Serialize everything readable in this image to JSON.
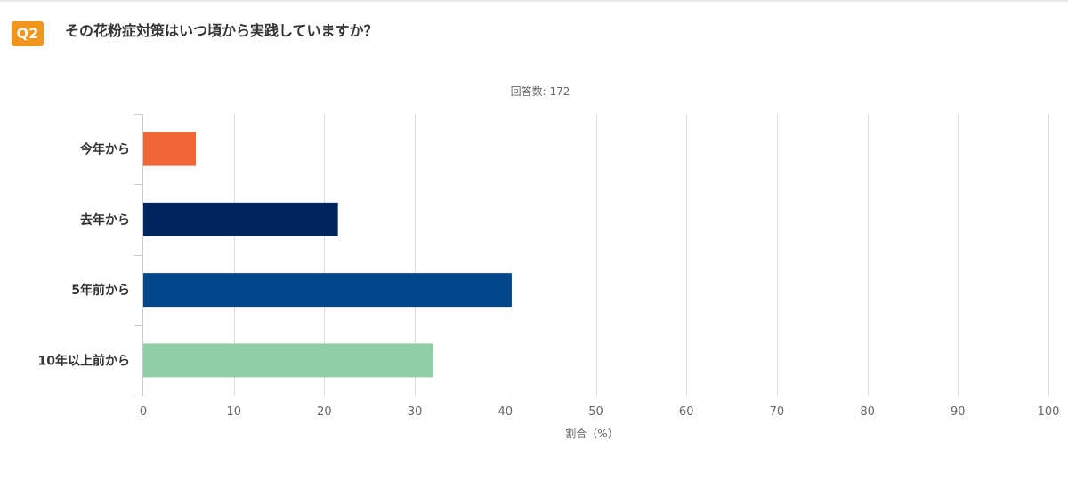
{
  "question": {
    "number": "Q2",
    "text": "その花粉症対策はいつ頃から実践していますか？"
  },
  "respondents_label": "回答数: 172",
  "chart_data": {
    "type": "bar",
    "orientation": "horizontal",
    "categories": [
      "今年から",
      "去年から",
      "5年前から",
      "10年以上前から"
    ],
    "values": [
      5.8,
      21.5,
      40.7,
      32.0
    ],
    "colors": [
      "#f26535",
      "#00245e",
      "#00488b",
      "#8fceA6"
    ],
    "xlabel": "割合（%）",
    "ylabel": "",
    "xlim": [
      0,
      100
    ],
    "xticks": [
      0,
      10,
      20,
      30,
      40,
      50,
      60,
      70,
      80,
      90,
      100
    ],
    "grid": true,
    "legend": "none"
  }
}
